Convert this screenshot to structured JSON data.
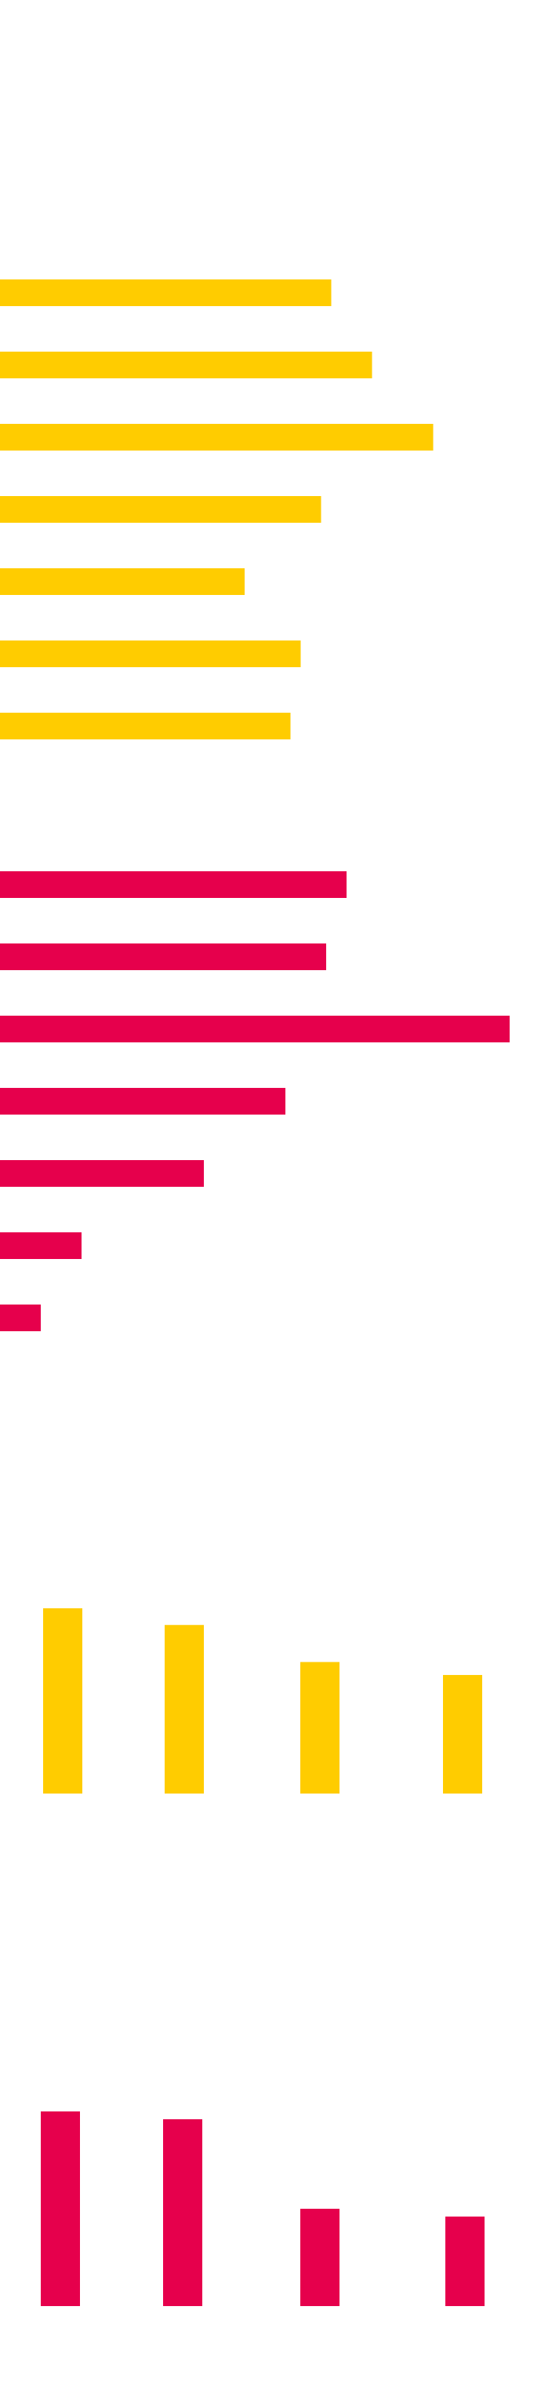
{
  "colors": {
    "background": "#ffffff",
    "yellow": "#FFCC00",
    "red": "#E6004C"
  },
  "chart_data": [
    {
      "type": "bar",
      "orientation": "horizontal",
      "color": "#FFCC00",
      "title": "",
      "xlabel": "",
      "ylabel": "",
      "xlim": [
        0,
        100
      ],
      "grid": false,
      "values": [
        65,
        73,
        85,
        63,
        48,
        59,
        57
      ]
    },
    {
      "type": "bar",
      "orientation": "horizontal",
      "color": "#E6004C",
      "title": "",
      "xlabel": "",
      "ylabel": "",
      "xlim": [
        0,
        100
      ],
      "grid": false,
      "values": [
        68,
        64,
        100,
        56,
        40,
        16,
        8
      ]
    },
    {
      "type": "bar",
      "orientation": "vertical",
      "color": "#FFCC00",
      "title": "",
      "xlabel": "",
      "ylabel": "",
      "ylim": [
        0,
        100
      ],
      "grid": false,
      "values": [
        100,
        91,
        71,
        64
      ]
    },
    {
      "type": "bar",
      "orientation": "vertical",
      "color": "#E6004C",
      "title": "",
      "xlabel": "",
      "ylabel": "",
      "ylim": [
        0,
        100
      ],
      "grid": false,
      "values": [
        100,
        96,
        50,
        46
      ]
    }
  ]
}
